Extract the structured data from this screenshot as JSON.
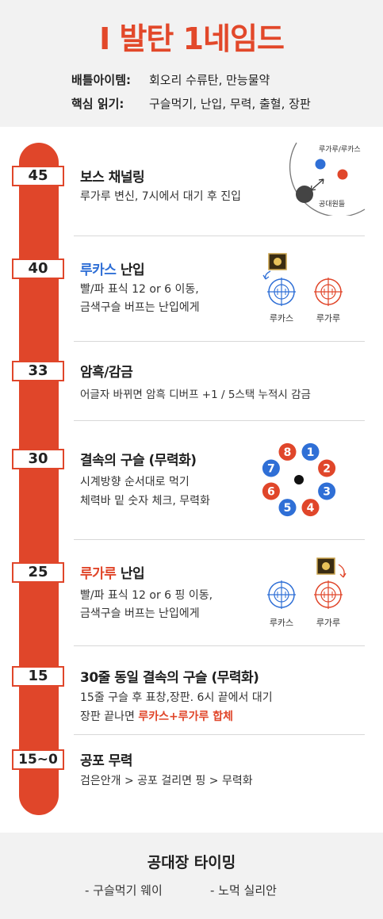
{
  "header": {
    "title": "I 발탄 1네임드",
    "items": [
      {
        "label": "배틀아이템:",
        "value": "회오리 수류탄, 만능물약"
      },
      {
        "label": "핵심 읽기:",
        "value": "구슬먹기, 난입, 무력, 출혈, 장판"
      }
    ]
  },
  "phases": [
    {
      "hp": "45",
      "title": "보스 채널링",
      "desc": [
        "루가루 변신, 7시에서 대기 후 진입"
      ]
    },
    {
      "hp": "40",
      "title_highlight": "루카스",
      "title_rest": " 난입",
      "desc": [
        "빨/파 표식 12 or 6 이동,",
        "금색구슬 버프는 난입에게"
      ]
    },
    {
      "hp": "33",
      "title": "암흑/감금",
      "desc": [
        "어글자 바뀌면 암흑 디버프 +1 / 5스택 누적시 감금"
      ]
    },
    {
      "hp": "30",
      "title": "결속의 구슬 (무력화)",
      "desc": [
        "시계방향 순서대로 먹기",
        "체력바 밑 숫자 체크, 무력화"
      ]
    },
    {
      "hp": "25",
      "title_highlight": "루가루",
      "title_rest": " 난입",
      "desc": [
        "빨/파 표식 12 or 6 핑 이동,",
        "금색구슬 버프는 난입에게"
      ]
    },
    {
      "hp": "15",
      "title": "30줄 동일 결속의 구슬 (무력화)",
      "desc": [
        "15줄 구슬 후 표창,장판. 6시 끝에서 대기"
      ],
      "desc2_plain": "장판 끝나면 ",
      "desc2_highlight": "루카스+루가루 합체"
    },
    {
      "hp": "15~0",
      "title": "공포 무력",
      "desc": [
        "검은안개 > 공포 걸리면 핑 > 무력화"
      ]
    }
  ],
  "diagram_channel": {
    "label_top": "루가루/루카스",
    "label_bottom": "공대원들"
  },
  "diagram_lucas": {
    "left_label": "루카스",
    "right_label": "루가루"
  },
  "diagram_lugaru": {
    "left_label": "루카스",
    "right_label": "루가루"
  },
  "orbs": {
    "numbers": [
      "1",
      "2",
      "3",
      "4",
      "5",
      "6",
      "7",
      "8"
    ],
    "colors": [
      "blue",
      "red",
      "blue",
      "red",
      "blue",
      "red",
      "blue",
      "red"
    ]
  },
  "colors": {
    "accent": "#e0462a",
    "blue": "#2f6fd6",
    "orb_red": "#e0462a",
    "orb_blue": "#2f6fd6"
  },
  "footer": {
    "title": "공대장 타이밍",
    "items": [
      "- 구슬먹기 웨이",
      "- 노먹 실리안"
    ]
  }
}
